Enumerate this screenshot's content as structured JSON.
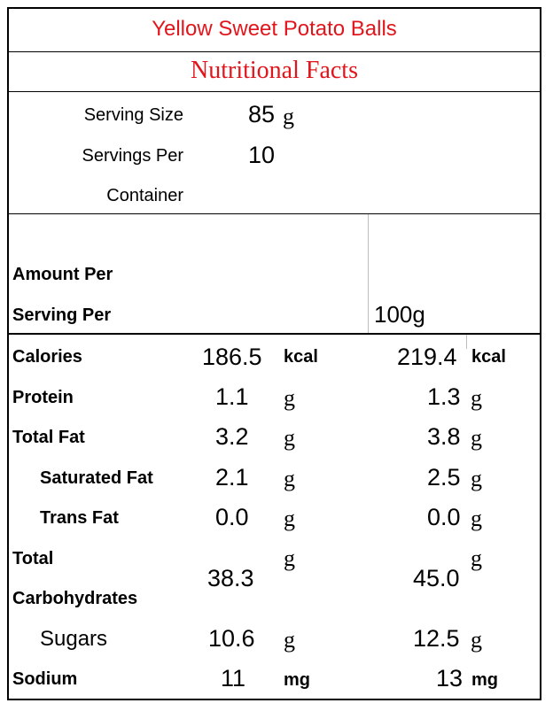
{
  "title": "Yellow Sweet Potato Balls",
  "subtitle": "Nutritional Facts",
  "serving": {
    "size_label": "Serving Size",
    "size_value": "85",
    "size_unit": "g",
    "per_label_1": "Servings Per",
    "per_label_2": "Container",
    "per_value": "10"
  },
  "header": {
    "amount_label_1": "Amount Per",
    "amount_label_2": "Serving Per",
    "col2_label": "100g"
  },
  "rows": [
    {
      "label": "Calories",
      "v1": "186.5",
      "u1": "kcal",
      "v2": "219.4",
      "u2": "kcal"
    },
    {
      "label": "Protein",
      "v1": "1.1",
      "u1": "g",
      "v2": "1.3",
      "u2": "g"
    },
    {
      "label": "Total Fat",
      "v1": "3.2",
      "u1": "g",
      "v2": "3.8",
      "u2": "g"
    },
    {
      "label": "Saturated Fat",
      "v1": "2.1",
      "u1": "g",
      "v2": "2.5",
      "u2": "g"
    },
    {
      "label": "Trans Fat",
      "v1": "0.0",
      "u1": "g",
      "v2": "0.0",
      "u2": "g"
    },
    {
      "label_1": "Total",
      "label_2": "Carbohydrates",
      "v1": "38.3",
      "u1": "g",
      "v2": "45.0",
      "u2": "g"
    },
    {
      "label": "Sugars",
      "v1": "10.6",
      "u1": "g",
      "v2": "12.5",
      "u2": "g"
    },
    {
      "label": "Sodium",
      "v1": "11",
      "u1": "mg",
      "v2": "13",
      "u2": "mg"
    }
  ],
  "colors": {
    "title": "#e0161c"
  }
}
